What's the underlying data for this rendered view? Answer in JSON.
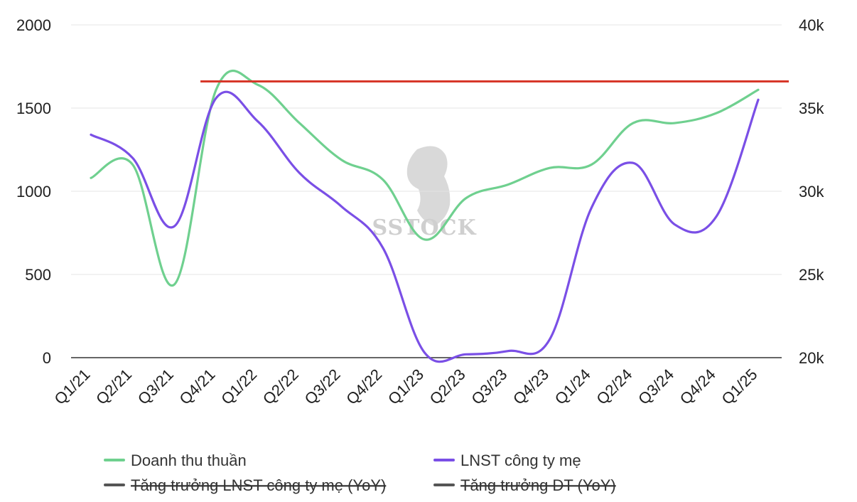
{
  "chart_data": {
    "type": "line",
    "categories": [
      "Q1/21",
      "Q2/21",
      "Q3/21",
      "Q4/21",
      "Q1/22",
      "Q2/22",
      "Q3/22",
      "Q4/22",
      "Q1/23",
      "Q2/23",
      "Q3/23",
      "Q4/23",
      "Q1/24",
      "Q2/24",
      "Q3/24",
      "Q4/24",
      "Q1/25"
    ],
    "y_left": {
      "min": 0,
      "max": 2000,
      "ticks": [
        0,
        500,
        1000,
        1500,
        2000
      ],
      "tick_labels": [
        "0",
        "500",
        "1000",
        "1500",
        "2000"
      ]
    },
    "y_right": {
      "min": 20000,
      "max": 40000,
      "ticks": [
        20000,
        25000,
        30000,
        35000,
        40000
      ],
      "tick_labels": [
        "20k",
        "25k",
        "30k",
        "35k",
        "40k"
      ]
    },
    "grid": true,
    "series": [
      {
        "name": "Doanh thu thuần",
        "axis": "left",
        "color": "#6fd08f",
        "values": [
          1080,
          1160,
          440,
          1610,
          1640,
          1410,
          1190,
          1070,
          710,
          960,
          1040,
          1140,
          1160,
          1410,
          1410,
          1470,
          1610
        ]
      },
      {
        "name": "LNST công ty mẹ",
        "axis": "left",
        "color": "#7a4fe6",
        "values": [
          1340,
          1200,
          790,
          1560,
          1420,
          1110,
          910,
          660,
          30,
          20,
          40,
          110,
          900,
          1170,
          800,
          850,
          1550
        ]
      }
    ],
    "hidden_series": [
      {
        "name": "Tăng trưởng LNST công ty mẹ (YoY)"
      },
      {
        "name": "Tăng trưởng DT (YoY)"
      }
    ],
    "reference_line": {
      "value": 1660,
      "axis": "left",
      "from_category": "Q4/21",
      "to_category": "Q1/25",
      "color": "#d7372a"
    },
    "legend": {
      "position": "bottom",
      "items": [
        {
          "label": "Doanh thu thuần",
          "color": "#6fd08f",
          "hidden": false
        },
        {
          "label": "LNST công ty mẹ",
          "color": "#7a4fe6",
          "hidden": false
        },
        {
          "label": "Tăng trưởng LNST công ty mẹ (YoY)",
          "color": "#555555",
          "hidden": true
        },
        {
          "label": "Tăng trưởng DT (YoY)",
          "color": "#555555",
          "hidden": true
        }
      ]
    },
    "watermark": "SSTOCK"
  }
}
